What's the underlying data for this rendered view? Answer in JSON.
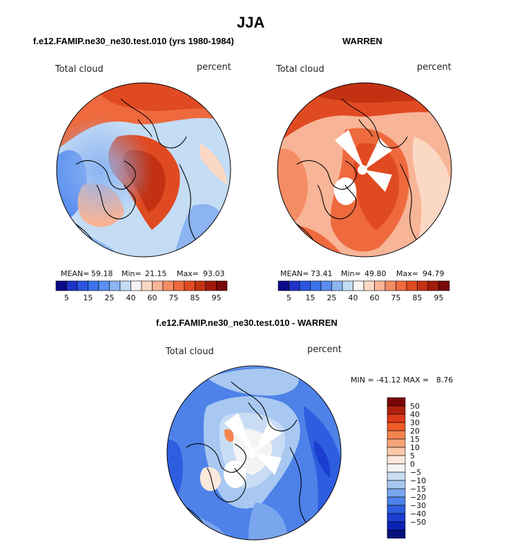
{
  "title": "JJA",
  "panel_left": {
    "title": "f.e12.FAMIP.ne30_ne30.test.010 (yrs 1980-1984)",
    "variable": "Total cloud",
    "units": "percent",
    "mean_label": "MEAN=",
    "mean": "59.18",
    "min_label": "Min=",
    "min": "21.15",
    "max_label": "Max=",
    "max": "93.03"
  },
  "panel_right": {
    "title": "WARREN",
    "variable": "Total cloud",
    "units": "percent",
    "mean_label": "MEAN=",
    "mean": "73.41",
    "min_label": "Min=",
    "min": "49.80",
    "max_label": "Max=",
    "max": "94.79"
  },
  "panel_diff": {
    "title": "f.e12.FAMIP.ne30_ne30.test.010 - WARREN",
    "variable": "Total cloud",
    "units": "percent",
    "minmax_text": "MIN = -41.12 MAX =   8.76"
  },
  "colorbar_top": {
    "colors": [
      "#0a0a8a",
      "#1e32c8",
      "#2a55e0",
      "#3c72ea",
      "#5a8ef0",
      "#8cb4f2",
      "#c4dcf4",
      "#f4f4f4",
      "#fbd8c4",
      "#f8b496",
      "#f48c64",
      "#ee6a3e",
      "#e04a22",
      "#c23212",
      "#a01a0a",
      "#7a0808"
    ],
    "ticks": [
      "5",
      "15",
      "25",
      "40",
      "60",
      "75",
      "85",
      "95"
    ]
  },
  "colorbar_diff": {
    "colors_top_to_bottom": [
      "#7a0808",
      "#b0200e",
      "#dc3a16",
      "#f05a28",
      "#f4844e",
      "#f6a47a",
      "#f9c8a8",
      "#fde8dc",
      "#f4f4f4",
      "#c8dcf4",
      "#a8c8f2",
      "#7aa6ee",
      "#4e82e8",
      "#2e5ee0",
      "#1a3ed0",
      "#0c22b4",
      "#06107a"
    ],
    "ticks_top_to_bottom": [
      "50",
      "40",
      "30",
      "20",
      "15",
      "10",
      "5",
      "0",
      "−5",
      "−10",
      "−15",
      "−20",
      "−30",
      "−40",
      "−50"
    ]
  }
}
